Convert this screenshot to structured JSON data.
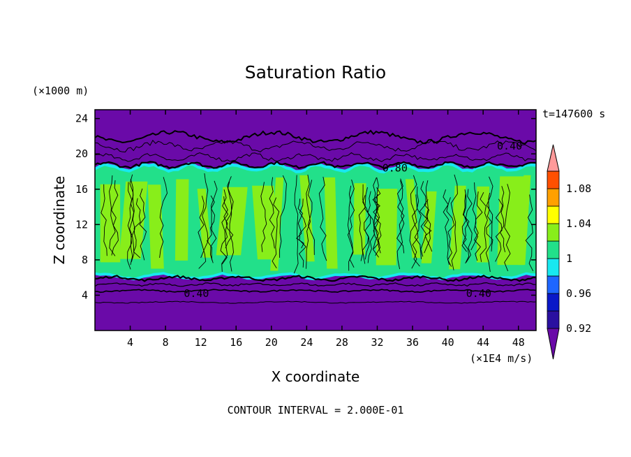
{
  "chart_data": {
    "type": "heatmap",
    "title": "Saturation Ratio",
    "xlabel": "X coordinate",
    "ylabel": "Z coordinate",
    "x_unit": "(×1E4 m/s)",
    "y_unit": "(×1000 m)",
    "time_label": "t=147600 s",
    "footer": "CONTOUR INTERVAL = 2.000E-01",
    "xlim": [
      0,
      50
    ],
    "ylim": [
      0,
      25
    ],
    "x_ticks": [
      4,
      8,
      12,
      16,
      20,
      24,
      28,
      32,
      36,
      40,
      44,
      48
    ],
    "y_ticks": [
      4,
      8,
      12,
      16,
      20,
      24
    ],
    "x_tick_labels": [
      "4",
      "8",
      "12",
      "16",
      "20",
      "24",
      "28",
      "32",
      "36",
      "40",
      "44",
      "48"
    ],
    "y_tick_labels": [
      "4",
      "8",
      "12",
      "16",
      "20",
      "24"
    ],
    "contour_labels": [
      {
        "text": "0.40",
        "x": 47.0,
        "y": 20.9
      },
      {
        "text": "0.80",
        "x": 34.0,
        "y": 18.4
      },
      {
        "text": "0.40",
        "x": 11.5,
        "y": 4.2
      },
      {
        "text": "0.40",
        "x": 43.5,
        "y": 4.2
      }
    ],
    "colorbar": {
      "levels": [
        0.92,
        0.94,
        0.96,
        0.98,
        1.0,
        1.02,
        1.04,
        1.06,
        1.08,
        1.1
      ],
      "colors": [
        "#6a0aa8",
        "#2a10a0",
        "#0a18c8",
        "#1e66ff",
        "#18e8f0",
        "#22e08a",
        "#88ee1a",
        "#ffff00",
        "#ffa000",
        "#ff5000",
        "#ff1818",
        "#ff9a9a"
      ],
      "tick_labels": [
        "0.92",
        "0.96",
        "1",
        "1.04",
        "1.08"
      ],
      "tick_values": [
        0.92,
        0.96,
        1.0,
        1.04,
        1.08
      ],
      "extend": "both"
    },
    "grid": false,
    "legend": "right colorbar"
  }
}
